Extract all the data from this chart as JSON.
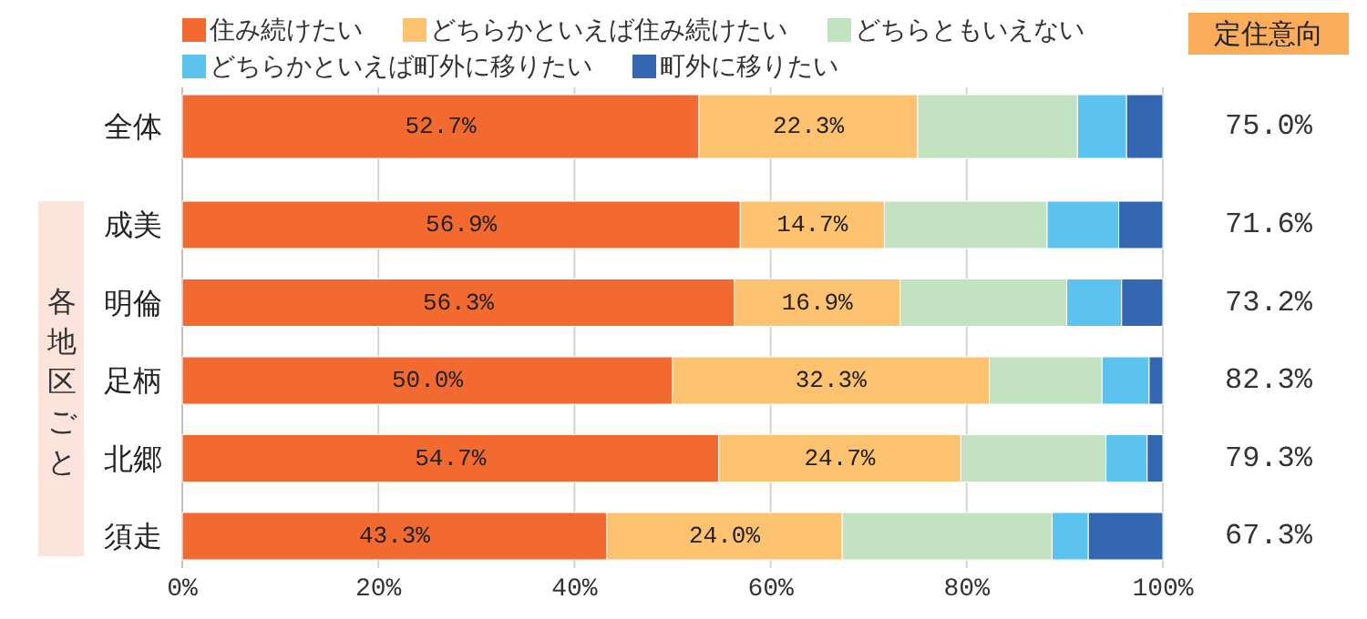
{
  "chart_data": {
    "type": "bar",
    "orientation": "horizontal",
    "stacked": true,
    "categories": [
      "全体",
      "成美",
      "明倫",
      "足柄",
      "北郷",
      "須走"
    ],
    "series": [
      {
        "name": "住み続けたい",
        "color": "#f26a30",
        "values": [
          52.7,
          56.9,
          56.3,
          50.0,
          54.7,
          43.3
        ],
        "value_labels": [
          "52.7%",
          "56.9%",
          "56.3%",
          "50.0%",
          "54.7%",
          "43.3%"
        ]
      },
      {
        "name": "どちらかといえば住み続けたい",
        "color": "#fdc270",
        "values": [
          22.3,
          14.7,
          16.9,
          32.3,
          24.7,
          24.0
        ],
        "value_labels": [
          "22.3%",
          "14.7%",
          "16.9%",
          "32.3%",
          "24.7%",
          "24.0%"
        ]
      },
      {
        "name": "どちらともいえない",
        "color": "#c3e2c2",
        "values": [
          16.3,
          16.6,
          17.0,
          11.5,
          14.8,
          21.4
        ]
      },
      {
        "name": "どちらかといえば町外に移りたい",
        "color": "#5bc3ee",
        "values": [
          5.0,
          7.3,
          5.6,
          4.8,
          4.2,
          3.7
        ]
      },
      {
        "name": "町外に移りたい",
        "color": "#3467b1",
        "values": [
          3.7,
          4.5,
          4.2,
          1.4,
          1.6,
          7.6
        ]
      }
    ],
    "xlim": [
      0,
      100
    ],
    "xticks": [
      {
        "value": 0,
        "label": "0%"
      },
      {
        "value": 20,
        "label": "20%"
      },
      {
        "value": 40,
        "label": "40%"
      },
      {
        "value": 60,
        "label": "60%"
      },
      {
        "value": 80,
        "label": "80%"
      },
      {
        "value": 100,
        "label": "100%"
      }
    ],
    "grid": "x",
    "legend": "top",
    "annotations": [
      "各地区ごと",
      "定住意向",
      "75.0%",
      "71.6%",
      "73.2%",
      "82.3%",
      "79.3%",
      "67.3%"
    ]
  }
}
